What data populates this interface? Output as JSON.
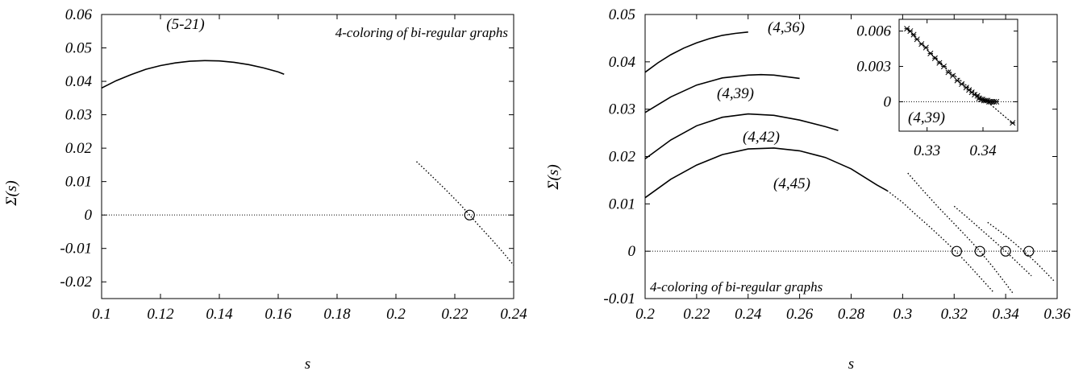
{
  "chart_data": [
    {
      "type": "line",
      "xlabel": "s",
      "ylabel": "Σ(s)",
      "xlim": [
        0.1,
        0.24
      ],
      "ylim": [
        -0.025,
        0.06
      ],
      "xticks": [
        0.1,
        0.12,
        0.14,
        0.16,
        0.18,
        0.2,
        0.22,
        0.24
      ],
      "yticks": [
        -0.02,
        -0.01,
        0,
        0.01,
        0.02,
        0.03,
        0.04,
        0.05,
        0.06
      ],
      "xtick_labels": [
        "0.1",
        "0.12",
        "0.14",
        "0.16",
        "0.18",
        "0.2",
        "0.22",
        "0.24"
      ],
      "ytick_labels": [
        "-0.02",
        "-0.01",
        "0",
        "0.01",
        "0.02",
        "0.03",
        "0.04",
        "0.05",
        "0.06"
      ],
      "annotation": "4-coloring of bi-regular graphs",
      "zero_line": true,
      "series": [
        {
          "name": "(5-21)",
          "style": "solid",
          "x": [
            0.1,
            0.105,
            0.11,
            0.115,
            0.12,
            0.125,
            0.13,
            0.135,
            0.14,
            0.145,
            0.15,
            0.155,
            0.16,
            0.162
          ],
          "y": [
            0.038,
            0.0402,
            0.042,
            0.0436,
            0.0447,
            0.0455,
            0.046,
            0.0462,
            0.0461,
            0.0457,
            0.045,
            0.044,
            0.0428,
            0.0421
          ]
        },
        {
          "name": "",
          "style": "dotted",
          "x": [
            0.207,
            0.212,
            0.217,
            0.222,
            0.225,
            0.228,
            0.232,
            0.236,
            0.24
          ],
          "y": [
            0.016,
            0.0118,
            0.0075,
            0.003,
            0.0,
            -0.003,
            -0.0068,
            -0.0108,
            -0.015
          ]
        }
      ],
      "markers": [
        {
          "x": 0.225,
          "y": 0
        }
      ]
    },
    {
      "type": "line",
      "xlabel": "s",
      "ylabel": "Σ(s)",
      "xlim": [
        0.2,
        0.36
      ],
      "ylim": [
        -0.01,
        0.05
      ],
      "xticks": [
        0.2,
        0.22,
        0.24,
        0.26,
        0.28,
        0.3,
        0.32,
        0.34,
        0.36
      ],
      "yticks": [
        -0.01,
        0,
        0.01,
        0.02,
        0.03,
        0.04,
        0.05
      ],
      "xtick_labels": [
        "0.2",
        "0.22",
        "0.24",
        "0.26",
        "0.28",
        "0.3",
        "0.32",
        "0.34",
        "0.36"
      ],
      "ytick_labels": [
        "-0.01",
        "0",
        "0.01",
        "0.02",
        "0.03",
        "0.04",
        "0.05"
      ],
      "annotation": "4-coloring of bi-regular graphs",
      "zero_line": true,
      "series": [
        {
          "name": "(4,36)",
          "style": "solid",
          "x": [
            0.2,
            0.205,
            0.21,
            0.215,
            0.22,
            0.225,
            0.23,
            0.235,
            0.24
          ],
          "y": [
            0.0378,
            0.0398,
            0.0415,
            0.0429,
            0.044,
            0.0449,
            0.0456,
            0.046,
            0.0463
          ]
        },
        {
          "name": "(4,39)",
          "style": "solid",
          "x": [
            0.2,
            0.21,
            0.22,
            0.23,
            0.24,
            0.245,
            0.25,
            0.26
          ],
          "y": [
            0.0293,
            0.0326,
            0.0351,
            0.0366,
            0.0372,
            0.0373,
            0.0372,
            0.0365
          ]
        },
        {
          "name": "(4,42)",
          "style": "solid",
          "x": [
            0.2,
            0.21,
            0.22,
            0.23,
            0.24,
            0.25,
            0.26,
            0.27,
            0.275
          ],
          "y": [
            0.0195,
            0.0235,
            0.0265,
            0.0283,
            0.029,
            0.0287,
            0.0277,
            0.0263,
            0.0255
          ]
        },
        {
          "name": "(4,45)",
          "style": "solid",
          "x": [
            0.2,
            0.21,
            0.22,
            0.23,
            0.24,
            0.25,
            0.26,
            0.27,
            0.28,
            0.29,
            0.294
          ],
          "y": [
            0.0113,
            0.0152,
            0.0182,
            0.0204,
            0.0216,
            0.0218,
            0.0212,
            0.0198,
            0.0174,
            0.014,
            0.0128
          ]
        },
        {
          "name": "",
          "style": "dotted",
          "x": [
            0.294,
            0.3,
            0.305,
            0.31,
            0.315,
            0.32,
            0.325,
            0.33,
            0.335
          ],
          "y": [
            0.0128,
            0.0103,
            0.0078,
            0.0054,
            0.0029,
            0.0003,
            -0.0025,
            -0.0055,
            -0.0085
          ]
        },
        {
          "name": "",
          "style": "dotted",
          "x": [
            0.302,
            0.308,
            0.314,
            0.32,
            0.326,
            0.33,
            0.335,
            0.34,
            0.343
          ],
          "y": [
            0.0165,
            0.0128,
            0.0092,
            0.0058,
            0.0024,
            0.0,
            -0.0033,
            -0.0068,
            -0.009
          ]
        },
        {
          "name": "",
          "style": "dotted",
          "x": [
            0.32,
            0.325,
            0.33,
            0.335,
            0.34,
            0.345,
            0.35
          ],
          "y": [
            0.0095,
            0.0072,
            0.0048,
            0.0024,
            0.0,
            -0.0026,
            -0.0052
          ]
        },
        {
          "name": "",
          "style": "dotted",
          "x": [
            0.333,
            0.338,
            0.343,
            0.348,
            0.352,
            0.356,
            0.359
          ],
          "y": [
            0.0061,
            0.0041,
            0.0019,
            -0.0005,
            -0.0025,
            -0.0047,
            -0.0064
          ]
        }
      ],
      "markers": [
        {
          "x": 0.321,
          "y": 0
        },
        {
          "x": 0.33,
          "y": 0
        },
        {
          "x": 0.34,
          "y": 0
        },
        {
          "x": 0.349,
          "y": 0
        }
      ],
      "inset": {
        "label": "(4,39)",
        "xlim": [
          0.325,
          0.3462
        ],
        "ylim": [
          -0.0025,
          0.007
        ],
        "xticks": [
          0.33,
          0.34
        ],
        "yticks": [
          0,
          0.003,
          0.006
        ],
        "xtick_labels": [
          "0.33",
          "0.34"
        ],
        "ytick_labels": [
          "0",
          "0.003",
          "0.006"
        ],
        "line": {
          "x": [
            0.3264,
            0.328,
            0.33,
            0.332,
            0.334,
            0.336,
            0.338,
            0.34,
            0.342,
            0.344,
            0.3455
          ],
          "y": [
            0.0062,
            0.0054,
            0.0044,
            0.0035,
            0.0026,
            0.0018,
            0.001,
            0.0003,
            -0.0005,
            -0.0013,
            -0.0019
          ]
        },
        "points": {
          "x": [
            0.3264,
            0.327,
            0.3276,
            0.3282,
            0.329,
            0.3298,
            0.3306,
            0.3314,
            0.3322,
            0.333,
            0.3338,
            0.3346,
            0.3354,
            0.3362,
            0.337,
            0.3375,
            0.338,
            0.3385,
            0.339,
            0.3393,
            0.3396,
            0.3399,
            0.3402,
            0.3405,
            0.3408,
            0.3411,
            0.3414,
            0.3417,
            0.342,
            0.3424,
            0.3453
          ],
          "y": [
            0.0062,
            0.006,
            0.0057,
            0.0053,
            0.0049,
            0.0046,
            0.0041,
            0.0037,
            0.0033,
            0.003,
            0.0025,
            0.0022,
            0.0018,
            0.0015,
            0.0012,
            0.001,
            0.0008,
            0.0006,
            0.0005,
            0.0003,
            0.0002,
            0.0002,
            0.0001,
            0.0001,
            0.0001,
            0.0,
            0.0,
            0.0,
            0.0,
            0.0,
            -0.0018
          ]
        }
      }
    }
  ]
}
